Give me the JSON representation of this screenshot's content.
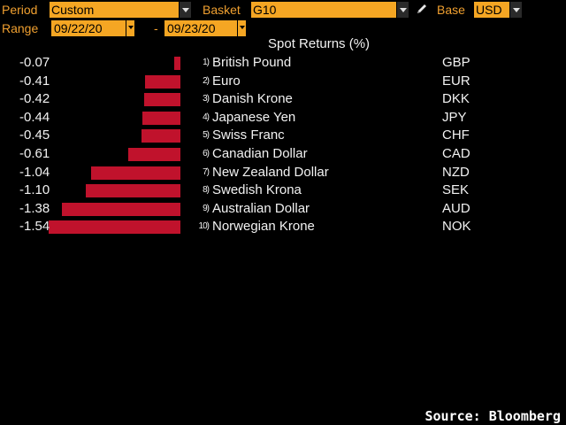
{
  "controls": {
    "period_label": "Period",
    "period_value": "Custom",
    "basket_label": "Basket",
    "basket_value": "G10",
    "edit_icon": "pencil-icon",
    "base_label": "Base",
    "base_value": "USD",
    "range_label": "Range",
    "start_date": "09/22/20",
    "range_separator": "-",
    "end_date": "09/23/20"
  },
  "chart_data": {
    "type": "bar",
    "title": "Spot Returns (%)",
    "bar_color": "#c0122c",
    "rows": [
      {
        "rank": "1)",
        "value": -0.07,
        "label": "-0.07",
        "name": "British Pound",
        "code": "GBP"
      },
      {
        "rank": "2)",
        "value": -0.41,
        "label": "-0.41",
        "name": "Euro",
        "code": "EUR"
      },
      {
        "rank": "3)",
        "value": -0.42,
        "label": "-0.42",
        "name": "Danish Krone",
        "code": "DKK"
      },
      {
        "rank": "4)",
        "value": -0.44,
        "label": "-0.44",
        "name": "Japanese Yen",
        "code": "JPY"
      },
      {
        "rank": "5)",
        "value": -0.45,
        "label": "-0.45",
        "name": "Swiss Franc",
        "code": "CHF"
      },
      {
        "rank": "6)",
        "value": -0.61,
        "label": "-0.61",
        "name": "Canadian Dollar",
        "code": "CAD"
      },
      {
        "rank": "7)",
        "value": -1.04,
        "label": "-1.04",
        "name": "New Zealand Dollar",
        "code": "NZD"
      },
      {
        "rank": "8)",
        "value": -1.1,
        "label": "-1.10",
        "name": "Swedish Krona",
        "code": "SEK"
      },
      {
        "rank": "9)",
        "value": -1.38,
        "label": "-1.38",
        "name": "Australian Dollar",
        "code": "AUD"
      },
      {
        "rank": "10)",
        "value": -1.54,
        "label": "-1.54",
        "name": "Norwegian Krone",
        "code": "NOK"
      }
    ]
  },
  "footer": {
    "source": "Source: Bloomberg"
  }
}
